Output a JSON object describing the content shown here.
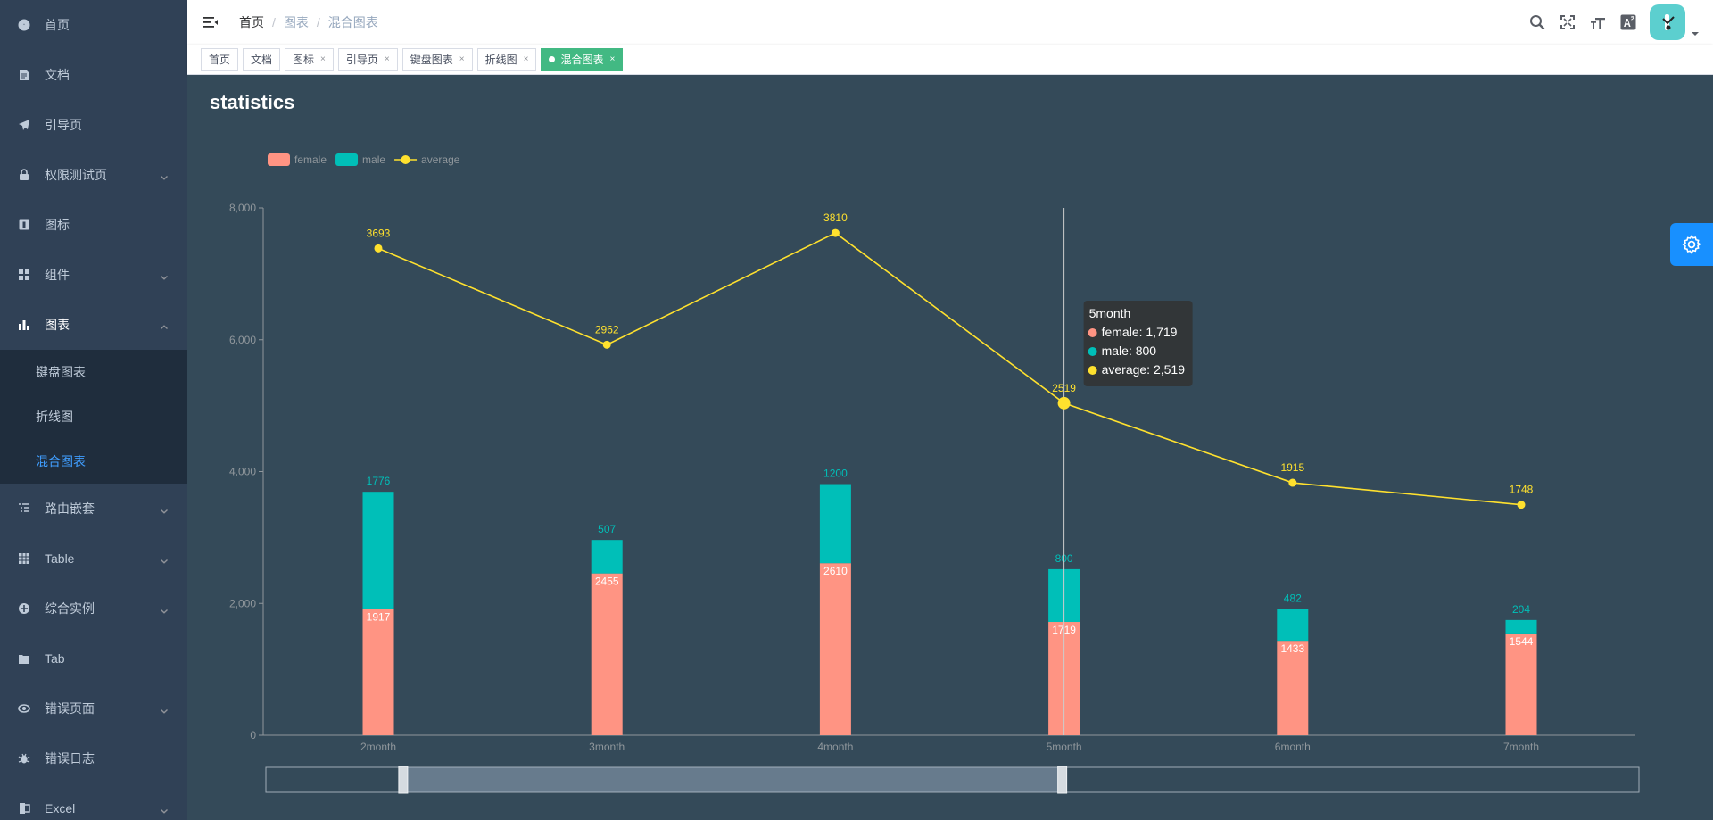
{
  "sidebar": {
    "items": [
      {
        "label": "首页",
        "icon": "dashboard-icon",
        "has_arrow": false
      },
      {
        "label": "文档",
        "icon": "document-icon",
        "has_arrow": false
      },
      {
        "label": "引导页",
        "icon": "guide-icon",
        "has_arrow": false
      },
      {
        "label": "权限测试页",
        "icon": "lock-icon",
        "has_arrow": true
      },
      {
        "label": "图标",
        "icon": "icon-icon",
        "has_arrow": false
      },
      {
        "label": "组件",
        "icon": "component-icon",
        "has_arrow": true
      },
      {
        "label": "图表",
        "icon": "chart-icon",
        "has_arrow": true,
        "open": true
      }
    ],
    "chart_sub": [
      {
        "label": "键盘图表",
        "active": false
      },
      {
        "label": "折线图",
        "active": false
      },
      {
        "label": "混合图表",
        "active": true
      }
    ],
    "items_after": [
      {
        "label": "路由嵌套",
        "icon": "nested-icon",
        "has_arrow": true
      },
      {
        "label": "Table",
        "icon": "table-icon",
        "has_arrow": true
      },
      {
        "label": "综合实例",
        "icon": "example-icon",
        "has_arrow": true
      },
      {
        "label": "Tab",
        "icon": "tab-icon",
        "has_arrow": false
      },
      {
        "label": "错误页面",
        "icon": "404-icon",
        "has_arrow": true
      },
      {
        "label": "错误日志",
        "icon": "bug-icon",
        "has_arrow": false
      },
      {
        "label": "Excel",
        "icon": "excel-icon",
        "has_arrow": true
      }
    ]
  },
  "navbar": {
    "breadcrumb": [
      "首页",
      "图表",
      "混合图表"
    ],
    "separator": "/"
  },
  "tags": [
    {
      "label": "首页",
      "closable": false,
      "active": false
    },
    {
      "label": "文档",
      "closable": false,
      "active": false
    },
    {
      "label": "图标",
      "closable": true,
      "active": false
    },
    {
      "label": "引导页",
      "closable": true,
      "active": false
    },
    {
      "label": "键盘图表",
      "closable": true,
      "active": false
    },
    {
      "label": "折线图",
      "closable": true,
      "active": false
    },
    {
      "label": "混合图表",
      "closable": true,
      "active": true
    }
  ],
  "tag_close_glyph": "×",
  "colors": {
    "female": "#ff9483",
    "male": "#00bfb8",
    "average": "#ffe12e",
    "background": "#344a59",
    "active_tag": "#42b983",
    "active_menu": "#409eff"
  },
  "chart_data": {
    "type": "bar",
    "title": "statistics",
    "categories": [
      "2month",
      "3month",
      "4month",
      "5month",
      "6month",
      "7month"
    ],
    "series": [
      {
        "name": "female",
        "type": "bar",
        "stack": "total",
        "values": [
          1917,
          2455,
          2610,
          1719,
          1433,
          1544
        ]
      },
      {
        "name": "male",
        "type": "bar",
        "stack": "total",
        "values": [
          1776,
          507,
          1200,
          800,
          482,
          204
        ]
      },
      {
        "name": "average",
        "type": "line",
        "values": [
          3693,
          2962,
          3810,
          2519,
          1915,
          1748
        ]
      }
    ],
    "line_plot_scale": 2,
    "ylim": [
      0,
      8000
    ],
    "yticks": [
      0,
      2000,
      4000,
      6000,
      8000
    ],
    "ytick_labels": [
      "0",
      "2,000",
      "4,000",
      "6,000",
      "8,000"
    ],
    "legend_position": "top-left",
    "grid": false,
    "datazoom": {
      "start": 10,
      "end": 58
    },
    "tooltip": {
      "title": "5month",
      "rows": [
        "female: 1,719",
        "male: 800",
        "average: 2,519"
      ],
      "category_index": 3
    }
  }
}
